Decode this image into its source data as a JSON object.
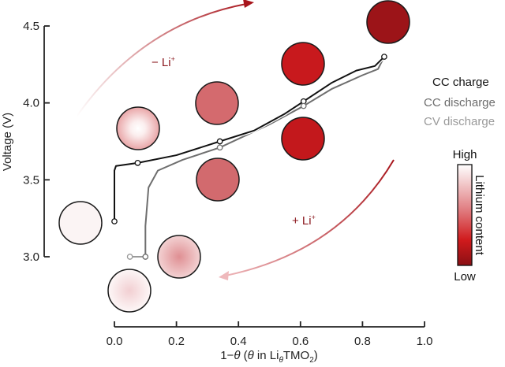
{
  "chart_data": {
    "type": "line",
    "title": "",
    "xlabel": "1−θ (θ in LiθTMO2)",
    "xlabel_parts": {
      "pre": "1−",
      "theta1": "θ",
      "mid": " (",
      "theta2": "θ",
      "in": " in Li",
      "sub": "θ",
      "tmo": "TMO",
      "sub2": "2",
      "close": ")"
    },
    "ylabel": "Voltage (V)",
    "xlim": [
      0.0,
      1.0
    ],
    "ylim": [
      3.0,
      4.5
    ],
    "xticks": [
      "0.0",
      "0.2",
      "0.4",
      "0.6",
      "0.8",
      "1.0"
    ],
    "yticks": [
      "3.0",
      "3.5",
      "4.0",
      "4.5"
    ],
    "grid": false,
    "legend_placement": "right",
    "series": [
      {
        "name": "CC charge",
        "color": "#111111",
        "x": [
          0.0,
          0.0,
          0.005,
          0.075,
          0.2,
          0.34,
          0.45,
          0.55,
          0.61,
          0.7,
          0.78,
          0.84,
          0.87
        ],
        "y": [
          3.23,
          3.56,
          3.59,
          3.61,
          3.66,
          3.75,
          3.82,
          3.93,
          4.01,
          4.13,
          4.21,
          4.24,
          4.3
        ],
        "markers": [
          [
            0.0,
            3.23
          ],
          [
            0.075,
            3.61
          ],
          [
            0.34,
            3.75
          ],
          [
            0.61,
            4.01
          ],
          [
            0.87,
            4.3
          ]
        ]
      },
      {
        "name": "CC discharge",
        "color": "#6e6e6e",
        "x": [
          0.87,
          0.85,
          0.8,
          0.7,
          0.61,
          0.5,
          0.34,
          0.22,
          0.14,
          0.11,
          0.1,
          0.1
        ],
        "y": [
          4.3,
          4.22,
          4.18,
          4.09,
          3.98,
          3.86,
          3.71,
          3.63,
          3.56,
          3.45,
          3.2,
          3.0
        ],
        "markers": [
          [
            0.34,
            3.71
          ],
          [
            0.61,
            3.98
          ],
          [
            0.1,
            3.0
          ]
        ]
      },
      {
        "name": "CV discharge",
        "color": "#9a9a9a",
        "x": [
          0.1,
          0.05
        ],
        "y": [
          3.0,
          3.0
        ],
        "markers": [
          [
            0.05,
            3.0
          ]
        ]
      }
    ],
    "annotations": {
      "delithiation": "− Li",
      "lithiation": "+ Li",
      "plus_sup": "+"
    },
    "colorbar": {
      "title": "Lithium content",
      "high": "High",
      "low": "Low",
      "colors": [
        "#ffffff",
        "#e08080",
        "#d21a1a",
        "#8c1015"
      ]
    }
  }
}
